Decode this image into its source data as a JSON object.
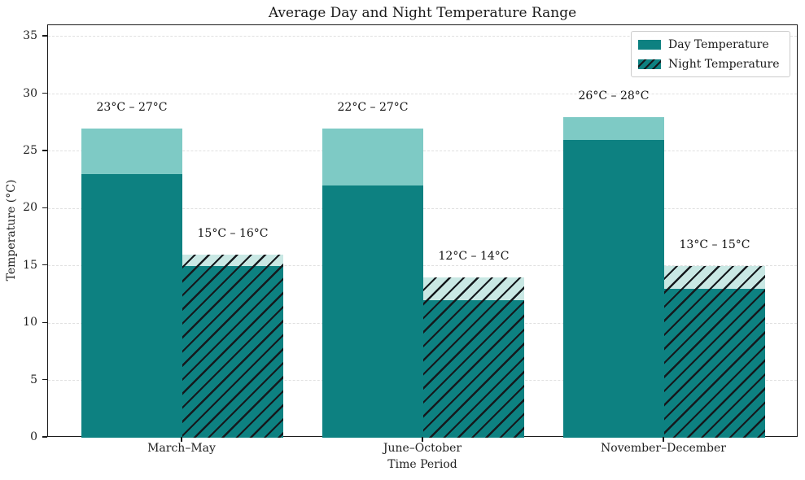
{
  "chart_data": {
    "type": "bar",
    "title": "Average Day and Night Temperature Range",
    "xlabel": "Time Period",
    "ylabel": "Temperature (°C)",
    "categories": [
      "March–May",
      "June–October",
      "November–December"
    ],
    "series": [
      {
        "name": "Day Temperature",
        "style": "solid",
        "ranges": [
          {
            "low": 23,
            "high": 27
          },
          {
            "low": 22,
            "high": 27
          },
          {
            "low": 26,
            "high": 28
          }
        ],
        "labels": [
          "23°C – 27°C",
          "22°C – 27°C",
          "26°C – 28°C"
        ]
      },
      {
        "name": "Night Temperature",
        "style": "hatched",
        "ranges": [
          {
            "low": 15,
            "high": 16
          },
          {
            "low": 12,
            "high": 14
          },
          {
            "low": 13,
            "high": 15
          }
        ],
        "labels": [
          "15°C – 16°C",
          "12°C – 14°C",
          "13°C – 15°C"
        ]
      }
    ],
    "y_ticks": [
      0,
      5,
      10,
      15,
      20,
      25,
      30,
      35
    ],
    "ylim": [
      0,
      36
    ],
    "grid": "horizontal-dashed",
    "legend_position": "upper-right",
    "colors": {
      "bar_solid": "#0d8181",
      "day_range": "#7ecac5",
      "night_range": "#c9e8e4",
      "hatch_line": "#15191d",
      "grid_line": "#e0e0e0",
      "axis_text": "#1f1f1f"
    }
  }
}
